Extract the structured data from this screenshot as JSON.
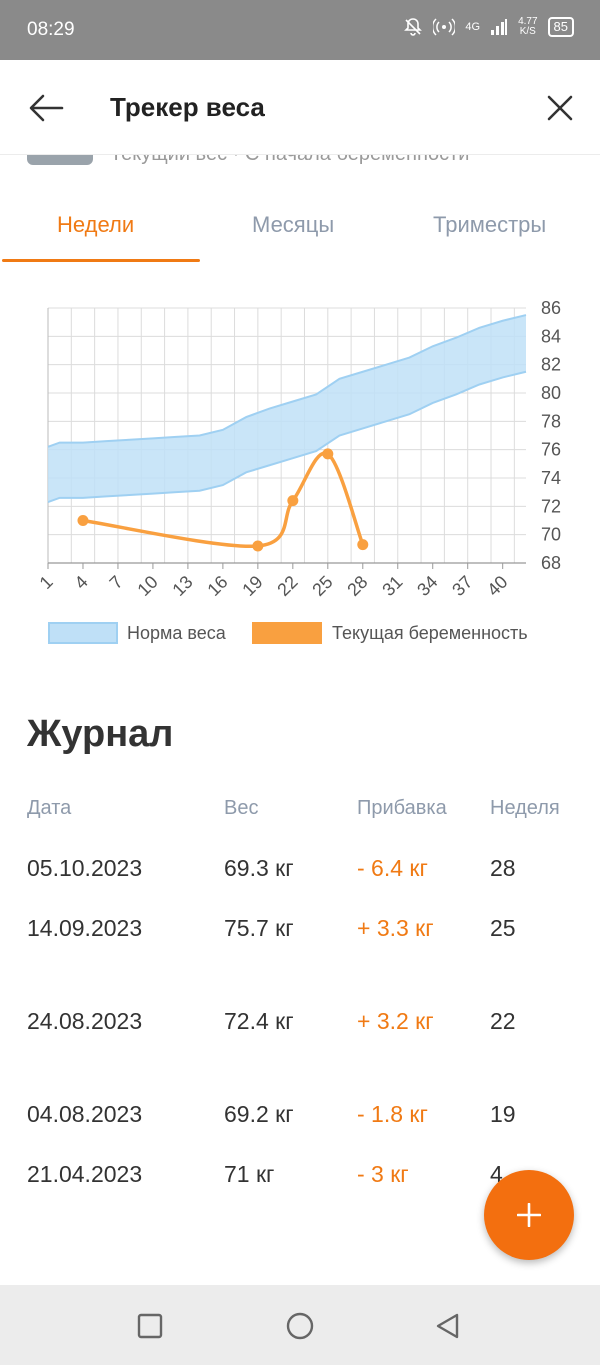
{
  "status": {
    "time": "08:29",
    "net_type": "4G",
    "net_speed": "4.77",
    "net_unit": "K/S",
    "battery": "85"
  },
  "appbar": {
    "title": "Трекер веса"
  },
  "peek": {
    "text": "Текущий вес · С начала беременности"
  },
  "tabs": [
    {
      "label": "Недели",
      "active": true
    },
    {
      "label": "Месяцы",
      "active": false
    },
    {
      "label": "Триместры",
      "active": false
    }
  ],
  "chart_data": {
    "type": "line",
    "x_ticks": [
      1,
      4,
      7,
      10,
      13,
      16,
      19,
      22,
      25,
      28,
      31,
      34,
      37,
      40
    ],
    "y_ticks": [
      68,
      70,
      72,
      74,
      76,
      78,
      80,
      82,
      84,
      86
    ],
    "xlim": [
      1,
      42
    ],
    "ylim": [
      68,
      86
    ],
    "grid": true,
    "legend_position": "bottom",
    "norm_band": {
      "name": "Норма веса",
      "color": "#bfe0f7",
      "x": [
        1,
        2,
        4,
        6,
        8,
        10,
        12,
        14,
        16,
        18,
        20,
        22,
        24,
        26,
        28,
        30,
        32,
        34,
        36,
        38,
        40,
        42
      ],
      "upper": [
        76.2,
        76.5,
        76.5,
        76.6,
        76.7,
        76.8,
        76.9,
        77.0,
        77.4,
        78.3,
        78.9,
        79.4,
        79.9,
        81.0,
        81.5,
        82.0,
        82.5,
        83.3,
        83.9,
        84.6,
        85.1,
        85.5
      ],
      "lower": [
        72.3,
        72.6,
        72.6,
        72.7,
        72.8,
        72.9,
        73.0,
        73.1,
        73.5,
        74.4,
        74.9,
        75.4,
        75.9,
        77.0,
        77.5,
        78.0,
        78.5,
        79.3,
        79.9,
        80.6,
        81.1,
        81.5
      ]
    },
    "series": [
      {
        "name": "Текущая беременность",
        "color": "#f9a040",
        "x": [
          4,
          19,
          22,
          25,
          28
        ],
        "values": [
          71.0,
          69.2,
          72.4,
          75.7,
          69.3
        ]
      }
    ]
  },
  "legend": {
    "norm": "Норма веса",
    "current": "Текущая беременность"
  },
  "journal": {
    "title": "Журнал",
    "headers": {
      "date": "Дата",
      "weight": "Вес",
      "gain": "Прибавка",
      "week": "Неделя"
    },
    "rows": [
      {
        "date": "05.10.2023",
        "weight": "69.3 кг",
        "gain": "- 6.4 кг",
        "week": "28"
      },
      {
        "date": "14.09.2023",
        "weight": "75.7 кг",
        "gain": "+ 3.3 кг",
        "week": "25"
      },
      {
        "date": "24.08.2023",
        "weight": "72.4 кг",
        "gain": "+ 3.2 кг",
        "week": "22"
      },
      {
        "date": "04.08.2023",
        "weight": "69.2 кг",
        "gain": "- 1.8 кг",
        "week": "19"
      },
      {
        "date": "21.04.2023",
        "weight": "71 кг",
        "gain": "- 3 кг",
        "week": "4"
      }
    ]
  },
  "colors": {
    "accent": "#f07a14",
    "fab": "#f36f0f"
  },
  "icons": {
    "back": "arrow-left-icon",
    "close": "close-icon",
    "add": "plus-icon"
  }
}
